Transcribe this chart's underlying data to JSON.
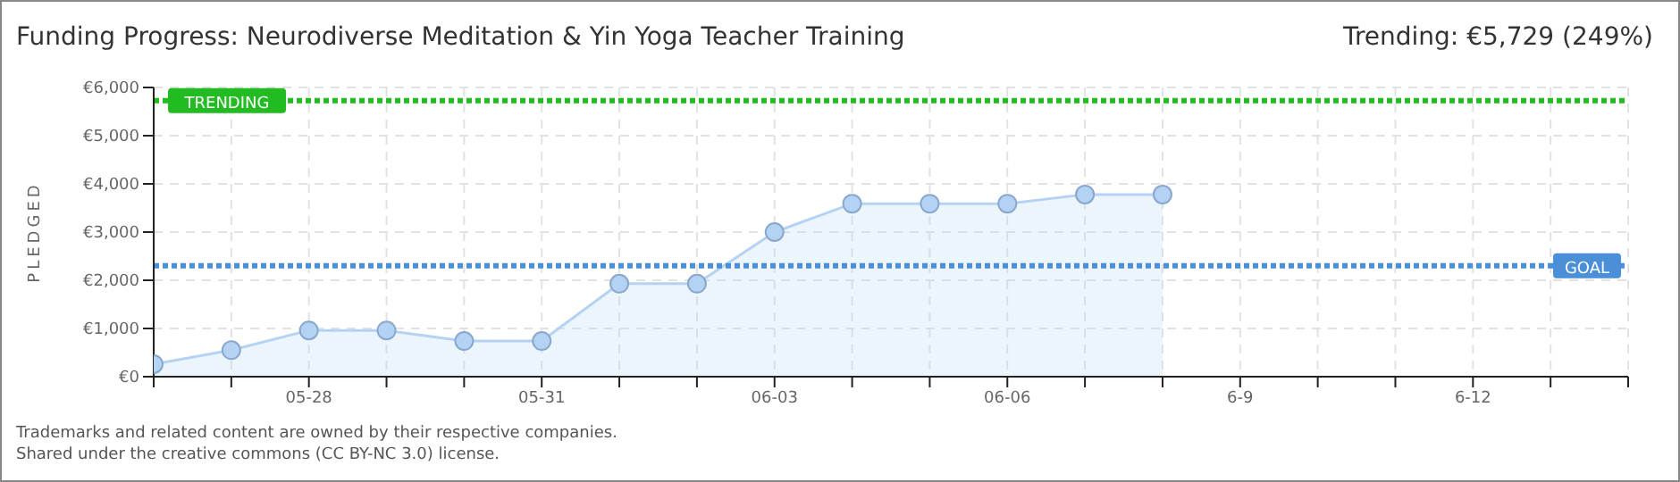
{
  "chart_data": {
    "type": "area",
    "title": "Funding Progress: Neurodiverse Meditation & Yin Yoga Teacher Training",
    "ylabel": "PLEDGED",
    "categories": [
      null,
      null,
      "05-28",
      null,
      null,
      "05-31",
      null,
      null,
      "06-03",
      null,
      null,
      "06-06",
      null,
      null,
      "6-9",
      null,
      null,
      "6-12",
      null,
      null
    ],
    "series": [
      {
        "color": "#b4d2f4",
        "values": [
          260,
          550,
          960,
          960,
          740,
          740,
          1930,
          1930,
          3000,
          3590,
          3590,
          3590,
          3780,
          3780,
          null,
          null,
          null,
          null,
          null,
          null
        ]
      }
    ],
    "ylim": [
      0,
      6000
    ],
    "yticks": [
      {
        "value": 0,
        "label": "€0"
      },
      {
        "value": 1000,
        "label": "€1,000"
      },
      {
        "value": 2000,
        "label": "€2,000"
      },
      {
        "value": 3000,
        "label": "€3,000"
      },
      {
        "value": 4000,
        "label": "€4,000"
      },
      {
        "value": 5000,
        "label": "€5,000"
      },
      {
        "value": 6000,
        "label": "€6,000"
      }
    ],
    "ref_lines": [
      {
        "axis": "y",
        "value": 5729,
        "label": "TRENDING",
        "color": "#22bb22",
        "line_style": "dotted"
      },
      {
        "axis": "y",
        "value": 2300,
        "label": "GOAL",
        "color": "#4a8fd8",
        "line_style": "dotted"
      }
    ],
    "annotations": [
      "Trending: €5,729 (249%)",
      "Trademarks and related content are owned by their respective companies.",
      "Shared under the creative commons (CC BY-NC 3.0) license."
    ],
    "grid": true,
    "marker": "circle"
  }
}
